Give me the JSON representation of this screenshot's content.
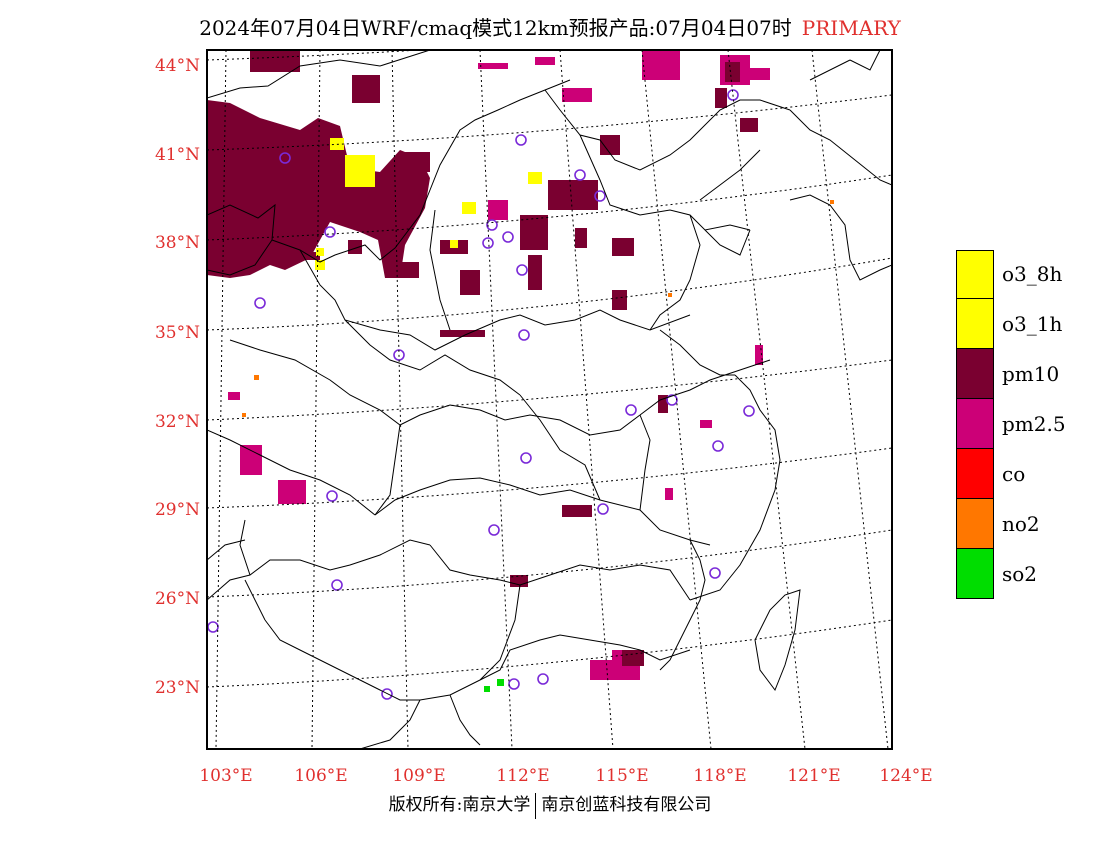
{
  "title": {
    "text": "2024年07月04日WRF/cmaq模式12km预报产品:07月04日07时",
    "tag": "PRIMARY",
    "tag_color": "#e0302e"
  },
  "map": {
    "lat_labels": [
      "44°N",
      "41°N",
      "38°N",
      "35°N",
      "32°N",
      "29°N",
      "26°N",
      "23°N"
    ],
    "lon_labels": [
      "103°E",
      "106°E",
      "109°E",
      "112°E",
      "115°E",
      "118°E",
      "121°E",
      "124°E"
    ],
    "label_color": "#e0302e"
  },
  "legend": {
    "items": [
      {
        "label": "o3_8h",
        "color": "#ffff00"
      },
      {
        "label": "o3_1h",
        "color": "#ffff00"
      },
      {
        "label": "pm10",
        "color": "#7a0030"
      },
      {
        "label": "pm2.5",
        "color": "#cc0077"
      },
      {
        "label": "co",
        "color": "#ff0000"
      },
      {
        "label": "no2",
        "color": "#ff7700"
      },
      {
        "label": "so2",
        "color": "#00dd00"
      }
    ]
  },
  "footer": {
    "left": "版权所有:南京大学",
    "right": "南京创蓝科技有限公司"
  }
}
